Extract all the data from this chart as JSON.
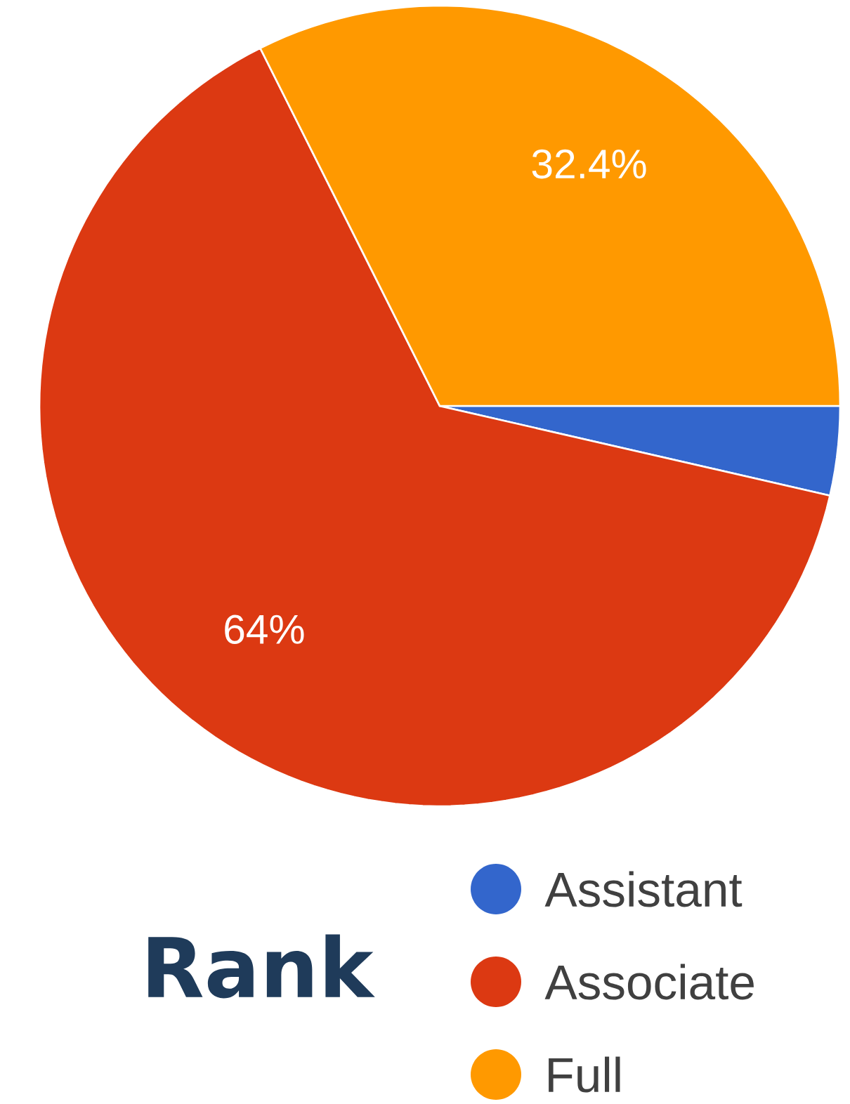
{
  "chart_data": {
    "type": "pie",
    "title": "Rank",
    "categories": [
      "Assistant",
      "Associate",
      "Full"
    ],
    "values": [
      3.6,
      64,
      32.4
    ],
    "colors": [
      "#3366cc",
      "#dc3912",
      "#ff9900"
    ],
    "value_labels": [
      null,
      "64%",
      "32.4%"
    ],
    "legend": "bottom right"
  }
}
